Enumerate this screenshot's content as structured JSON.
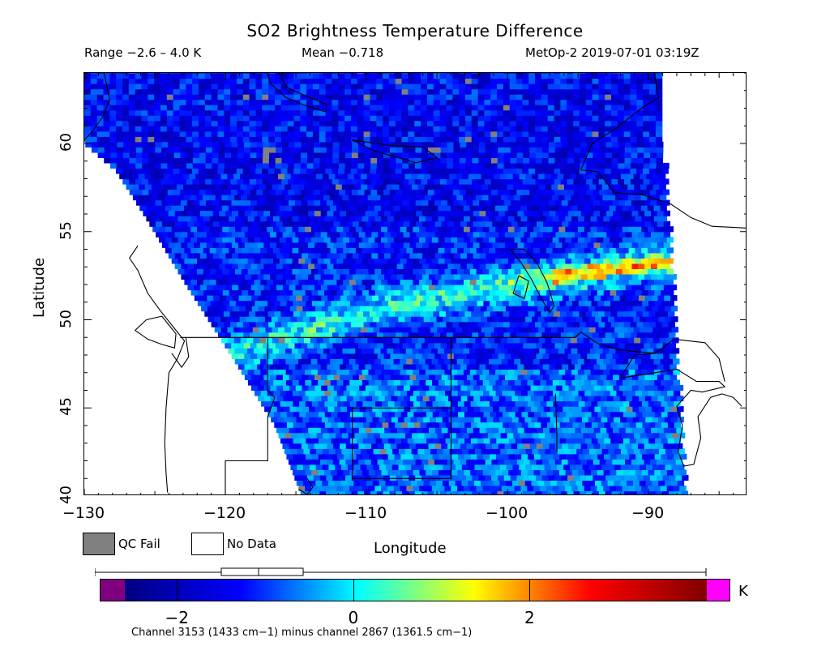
{
  "title": "SO2 Brightness Temperature Difference",
  "range_text": "Range −2.6 – 4.0 K",
  "mean_text": "Mean −0.718",
  "instrument_text": "MetOp-2 2019-07-01 03:19Z",
  "xlabel": "Longitude",
  "ylabel": "Latitude",
  "x_ticks": [
    "−130",
    "−120",
    "−110",
    "−100",
    "−90"
  ],
  "y_ticks": [
    "40",
    "45",
    "50",
    "55",
    "60"
  ],
  "legend": {
    "qc_fail": "QC Fail",
    "no_data": "No Data",
    "qc_color": "#808080",
    "nodata_color": "#ffffff"
  },
  "colorbar": {
    "unit": "K",
    "min": -2.6,
    "max": 4.0,
    "ticks": [
      "−2",
      "0",
      "2"
    ],
    "low_color": "#800080",
    "high_color": "#ff00ff",
    "colors": [
      "#000080",
      "#0000ff",
      "#00ffff",
      "#ffff00",
      "#ff0000",
      "#800000"
    ]
  },
  "footnote": "Channel 3153 (1433 cm−1) minus channel 2867 (1361.5 cm−1)",
  "chart_data": {
    "type": "heatmap",
    "variable": "SO2 Brightness Temperature Difference (K)",
    "xlim": [
      -130,
      -83
    ],
    "ylim": [
      40,
      64
    ],
    "value_range": [
      -2.6,
      4.0
    ],
    "mean": -0.718,
    "features": [
      {
        "description": "elevated SO2 band",
        "lon": [
          -120,
          -110,
          -100,
          -90
        ],
        "lat": [
          48,
          50.5,
          52,
          53.2
        ],
        "peak_value": 3.5
      }
    ],
    "background_value": -1.2
  }
}
